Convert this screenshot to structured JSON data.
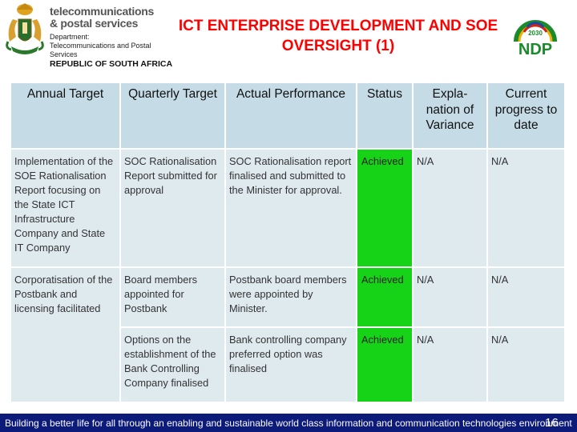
{
  "header": {
    "dept_line1": "telecommunications",
    "dept_line2": "& postal services",
    "dept_small1": "Department:",
    "dept_small2": "Telecommunications and Postal Services",
    "dept_rsa": "REPUBLIC OF SOUTH AFRICA",
    "title": "ICT ENTERPRISE DEVELOPMENT AND SOE OVERSIGHT (1)",
    "ndp_year": "2030",
    "ndp_text": "NDP"
  },
  "table": {
    "columns": [
      "Annual Target",
      "Quarterly Target",
      "Actual Performance",
      "Status",
      "Expla-nation of Variance",
      "Current progress to date"
    ],
    "rows": [
      {
        "annual_target": "Implementation of the SOE Rationalisation Report focusing on the State ICT Infrastructure Company and State IT Company",
        "quarterly_target": "SOC Rationalisation Report submitted for approval",
        "actual_performance": "SOC Rationalisation report finalised and submitted to the Minister for approval.",
        "status": "Achieved",
        "variance": "N/A",
        "progress": "N/A"
      },
      {
        "annual_target": "Corporatisation of the Postbank and licensing facilitated",
        "quarterly_target": "Board members appointed for Postbank",
        "actual_performance": "Postbank board members were appointed by Minister.",
        "status": "Achieved",
        "variance": "N/A",
        "progress": "N/A"
      },
      {
        "annual_target": "",
        "quarterly_target": "Options on the establishment of the Bank Controlling Company finalised",
        "actual_performance": "Bank controlling company preferred option was finalised",
        "status": "Achieved",
        "variance": "N/A",
        "progress": "N/A"
      }
    ]
  },
  "footer": {
    "text": "Building a better life for all through an enabling and sustainable world class information and communication technologies environment",
    "page": "16"
  },
  "colors": {
    "title": "#ff0000",
    "header_cell": "#c5dce6",
    "body_cell": "#dfeaef",
    "achieved": "#17d317",
    "footer_bg": "#0c1a7a"
  }
}
